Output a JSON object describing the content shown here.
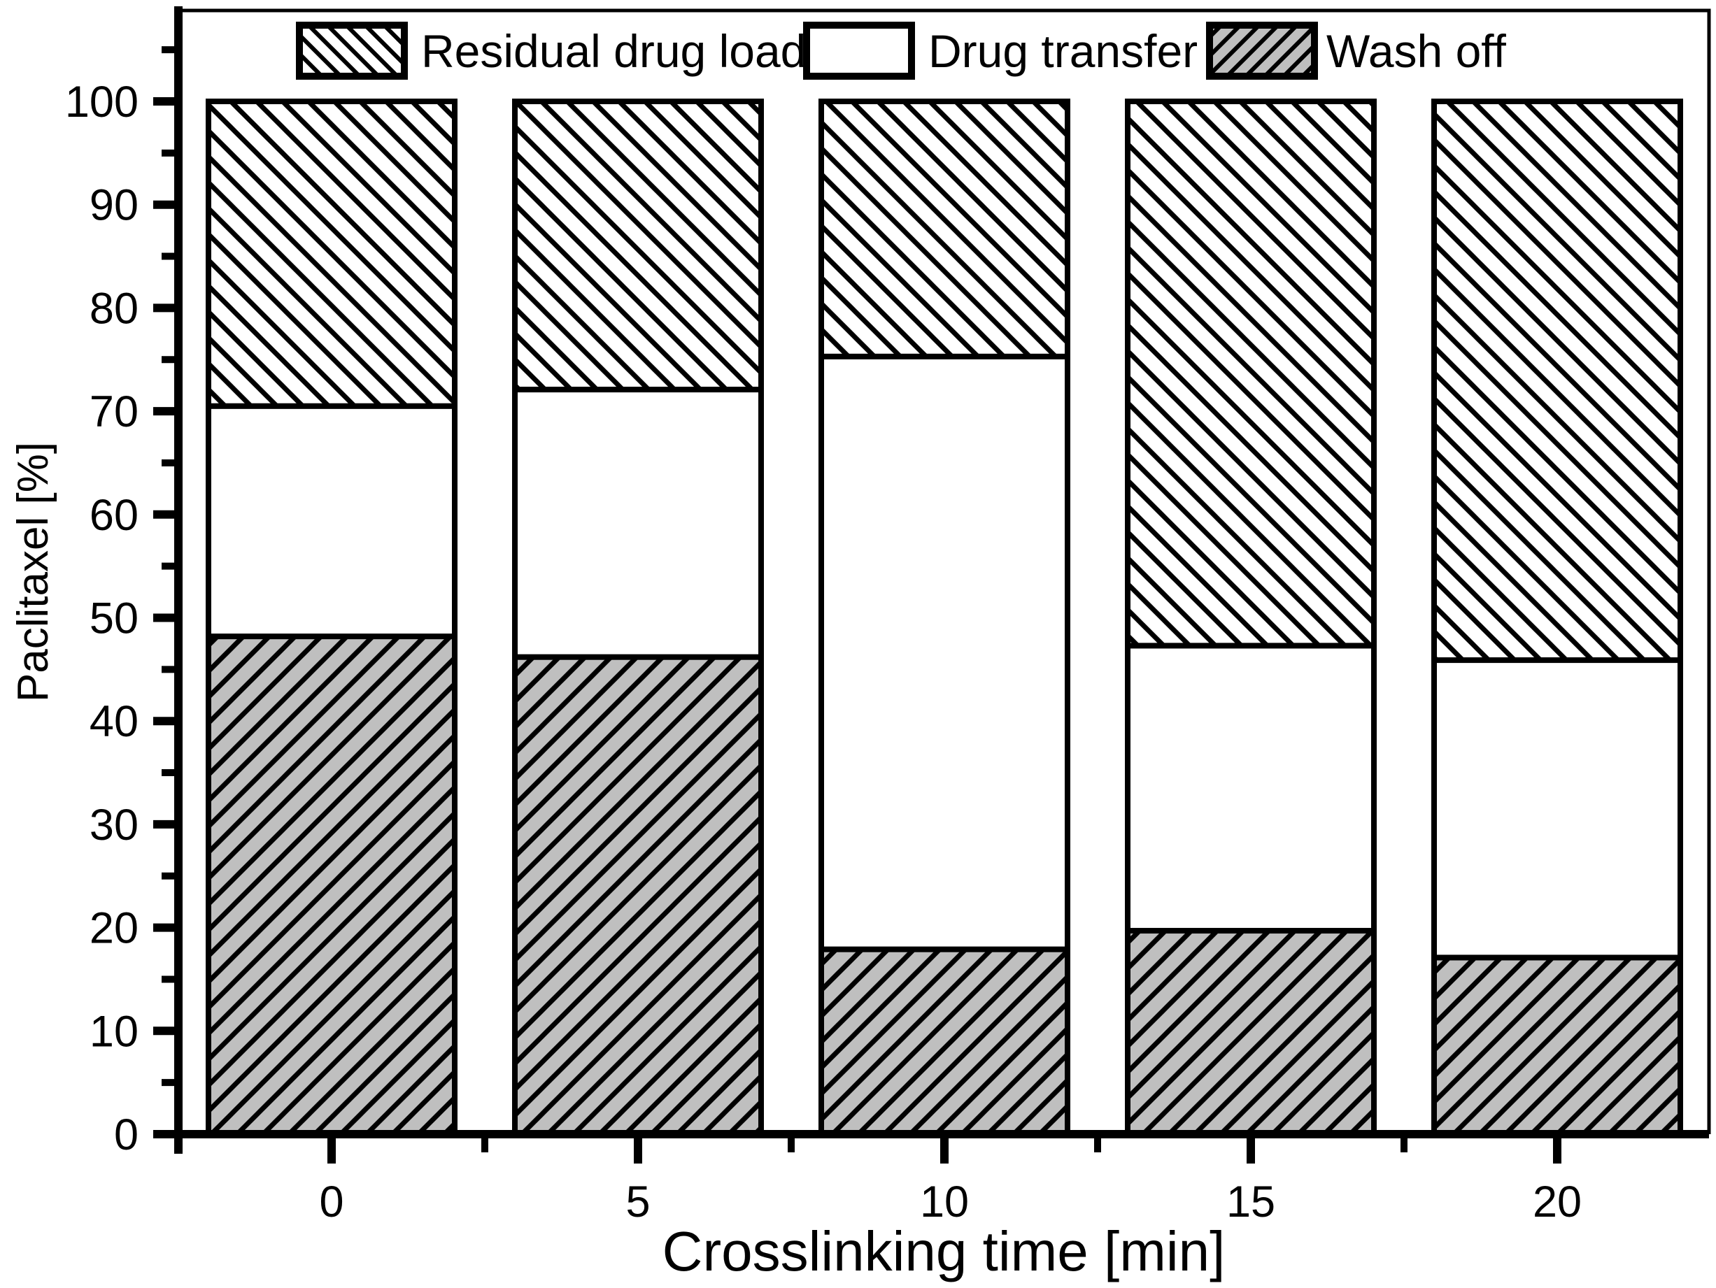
{
  "figure": {
    "background": "#ffffff",
    "ink": "#000000",
    "wash_gray": "#bfbfbf",
    "frame": "black rectangle, heavy left and bottom axes, thin top and right"
  },
  "chart_data": {
    "type": "bar",
    "stacked": true,
    "title": "",
    "xlabel": "Crosslinking time [min]",
    "ylabel": "Paclitaxel [%]",
    "categories": [
      "0",
      "5",
      "10",
      "15",
      "20"
    ],
    "series": [
      {
        "name": "Wash off",
        "pattern": "gray-forward-diagonal-hatch",
        "values": [
          48.2,
          46.2,
          17.9,
          19.7,
          17.1
        ]
      },
      {
        "name": "Drug transfer",
        "pattern": "solid-white",
        "values": [
          22.3,
          25.9,
          57.4,
          27.6,
          28.8
        ]
      },
      {
        "name": "Residual drug load",
        "pattern": "white-backward-diagonal-hatch",
        "values": [
          29.5,
          27.9,
          24.7,
          52.7,
          54.1
        ]
      }
    ],
    "stack_order_bottom_to_top": [
      "Wash off",
      "Drug transfer",
      "Residual drug load"
    ],
    "legend_order": [
      "Residual drug load",
      "Drug transfer",
      "Wash off"
    ],
    "stack_totals": [
      100,
      100,
      100,
      100,
      100
    ],
    "ylim": [
      0,
      108.8
    ],
    "y_major_ticks": [
      0,
      10,
      20,
      30,
      40,
      50,
      60,
      70,
      80,
      90,
      100
    ],
    "y_minor_ticks": [
      5,
      15,
      25,
      35,
      45,
      55,
      65,
      75,
      85,
      95,
      105
    ],
    "x_minor_ticks_min": [
      2.5,
      7.5,
      12.5,
      17.5
    ],
    "grid": false,
    "legend_position": "top-inside-horizontal"
  }
}
